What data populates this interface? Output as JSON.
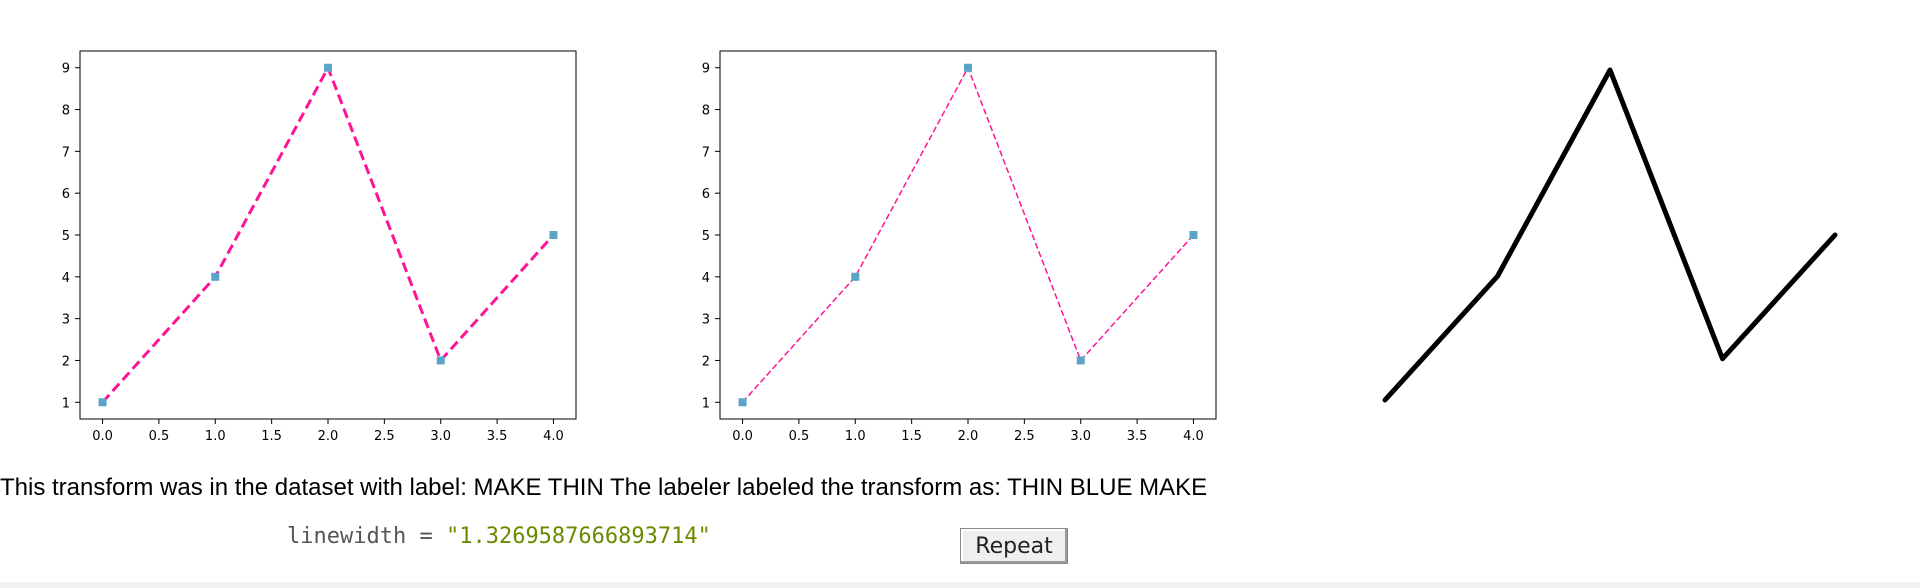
{
  "charts": [
    {
      "chart_data": {
        "type": "line",
        "x": [
          0,
          1,
          2,
          3,
          4
        ],
        "series": [
          {
            "values": [
              1,
              4,
              9,
              2,
              5
            ],
            "line_style": "dashed",
            "color": "#ff1493",
            "marker_color": "#5aa5c8",
            "marker": "square"
          }
        ],
        "xticks": [
          "0.0",
          "0.5",
          "1.0",
          "1.5",
          "2.0",
          "2.5",
          "3.0",
          "3.5",
          "4.0"
        ],
        "xtick_values": [
          0,
          0.5,
          1,
          1.5,
          2,
          2.5,
          3,
          3.5,
          4
        ],
        "yticks": [
          "1",
          "2",
          "3",
          "4",
          "5",
          "6",
          "7",
          "8",
          "9"
        ],
        "ytick_values": [
          1,
          2,
          3,
          4,
          5,
          6,
          7,
          8,
          9
        ],
        "xlim": [
          -0.2,
          4.2
        ],
        "ylim": [
          0.6,
          9.4
        ],
        "grid": false,
        "line_weight": "thick"
      }
    },
    {
      "chart_data": {
        "type": "line",
        "x": [
          0,
          1,
          2,
          3,
          4
        ],
        "series": [
          {
            "values": [
              1,
              4,
              9,
              2,
              5
            ],
            "line_style": "dashed",
            "color": "#ff1493",
            "marker_color": "#5aa5c8",
            "marker": "square"
          }
        ],
        "xticks": [
          "0.0",
          "0.5",
          "1.0",
          "1.5",
          "2.0",
          "2.5",
          "3.0",
          "3.5",
          "4.0"
        ],
        "xtick_values": [
          0,
          0.5,
          1,
          1.5,
          2,
          2.5,
          3,
          3.5,
          4
        ],
        "yticks": [
          "1",
          "2",
          "3",
          "4",
          "5",
          "6",
          "7",
          "8",
          "9"
        ],
        "ytick_values": [
          1,
          2,
          3,
          4,
          5,
          6,
          7,
          8,
          9
        ],
        "xlim": [
          -0.2,
          4.2
        ],
        "ylim": [
          0.6,
          9.4
        ],
        "grid": false,
        "line_weight": "thin"
      }
    }
  ],
  "sketch": {
    "x": [
      0,
      1,
      2,
      3,
      4
    ],
    "values": [
      1,
      4,
      9,
      2,
      5
    ],
    "color": "#000000"
  },
  "caption": "This transform was in the dataset with label: MAKE THIN The labeler labeled the transform as: THIN BLUE MAKE",
  "code": {
    "name": "linewidth",
    "op": " = ",
    "value": "\"1.3269587666893714\""
  },
  "repeat_label": "Repeat"
}
